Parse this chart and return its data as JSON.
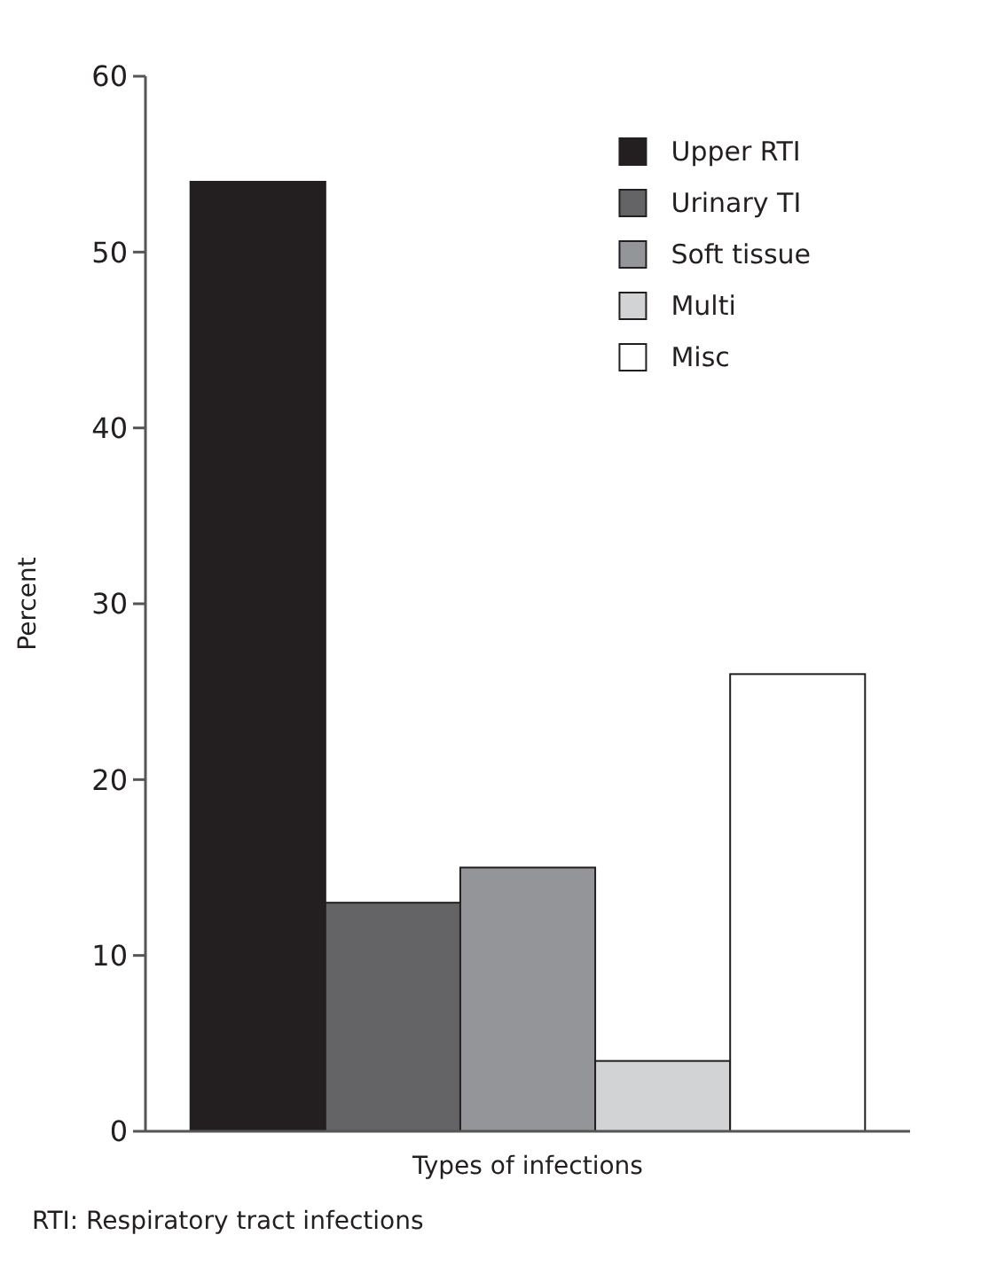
{
  "chart_data": {
    "type": "bar",
    "xlabel": "Types of infections",
    "ylabel": "Percent",
    "categories": [
      null
    ],
    "series": [
      {
        "name": "Upper RTI",
        "color": "#231f20",
        "values": [
          54
        ]
      },
      {
        "name": "Urinary TI",
        "color": "#646466",
        "values": [
          13
        ]
      },
      {
        "name": "Soft tissue",
        "color": "#939598",
        "values": [
          15
        ]
      },
      {
        "name": "Multi",
        "color": "#d1d3d4",
        "values": [
          4
        ]
      },
      {
        "name": "Misc",
        "color": "#ffffff",
        "values": [
          26
        ]
      }
    ],
    "ylim": [
      0,
      60
    ],
    "yticks": [
      0,
      10,
      20,
      30,
      40,
      50,
      60
    ],
    "grid": false,
    "legend": "top right",
    "annotations": [
      "RTI: Respiratory tract infections"
    ]
  }
}
